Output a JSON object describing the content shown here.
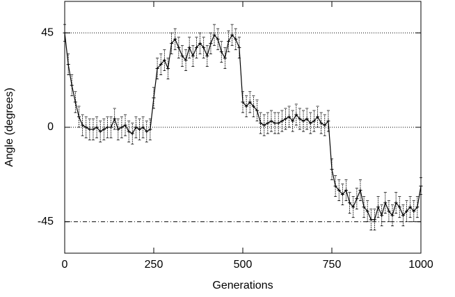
{
  "chart_data": {
    "type": "line-errorbar",
    "xlabel": "Generations",
    "ylabel": "Angle (degrees)",
    "xlim": [
      0,
      1000
    ],
    "ylim": [
      -60,
      60
    ],
    "xticks": [
      0,
      250,
      500,
      750,
      1000
    ],
    "yticks": [
      -45,
      0,
      45
    ],
    "hlines": [
      {
        "value": 45,
        "style": "dotted"
      },
      {
        "value": 0,
        "style": "dotted"
      },
      {
        "value": -45,
        "style": "dashdot"
      }
    ],
    "color": "#000000",
    "x": [
      0,
      10,
      20,
      30,
      40,
      50,
      60,
      70,
      80,
      90,
      100,
      110,
      120,
      130,
      140,
      150,
      160,
      170,
      180,
      190,
      200,
      210,
      220,
      230,
      240,
      250,
      260,
      270,
      280,
      290,
      300,
      310,
      320,
      330,
      340,
      350,
      360,
      370,
      380,
      390,
      400,
      410,
      420,
      430,
      440,
      450,
      460,
      470,
      480,
      490,
      500,
      510,
      520,
      530,
      540,
      550,
      560,
      570,
      580,
      590,
      600,
      610,
      620,
      630,
      640,
      650,
      660,
      670,
      680,
      690,
      700,
      710,
      720,
      730,
      740,
      750,
      760,
      770,
      780,
      790,
      800,
      810,
      820,
      830,
      840,
      850,
      860,
      870,
      880,
      890,
      900,
      910,
      920,
      930,
      940,
      950,
      960,
      970,
      980,
      990,
      1000
    ],
    "values": [
      45,
      30,
      20,
      12,
      5,
      1,
      0,
      -1,
      -1,
      0,
      -2,
      -1,
      0,
      0,
      4,
      -1,
      0,
      1,
      -2,
      -3,
      0,
      -1,
      0,
      -2,
      -1,
      14,
      28,
      30,
      32,
      28,
      40,
      42,
      38,
      34,
      32,
      38,
      34,
      38,
      40,
      38,
      34,
      40,
      44,
      42,
      36,
      33,
      41,
      44,
      42,
      38,
      12,
      10,
      12,
      10,
      8,
      2,
      1,
      2,
      3,
      2,
      2,
      3,
      4,
      5,
      3,
      6,
      4,
      3,
      4,
      2,
      3,
      5,
      2,
      1,
      3,
      -20,
      -28,
      -30,
      -32,
      -30,
      -36,
      -38,
      -34,
      -30,
      -38,
      -40,
      -44,
      -44,
      -38,
      -42,
      -36,
      -40,
      -42,
      -36,
      -38,
      -42,
      -40,
      -38,
      -40,
      -38,
      -28
    ],
    "errors": [
      4,
      5,
      5,
      5,
      5,
      5,
      5,
      5,
      5,
      5,
      5,
      5,
      5,
      5,
      5,
      5,
      5,
      5,
      5,
      5,
      5,
      5,
      5,
      5,
      5,
      5,
      5,
      5,
      5,
      5,
      5,
      5,
      5,
      5,
      5,
      5,
      5,
      5,
      5,
      5,
      5,
      5,
      5,
      5,
      5,
      5,
      5,
      5,
      5,
      5,
      5,
      5,
      5,
      5,
      5,
      5,
      5,
      5,
      5,
      5,
      5,
      5,
      5,
      5,
      5,
      5,
      5,
      5,
      5,
      5,
      5,
      5,
      5,
      5,
      5,
      5,
      5,
      5,
      5,
      5,
      5,
      5,
      5,
      5,
      5,
      5,
      5,
      5,
      5,
      5,
      5,
      5,
      5,
      5,
      5,
      5,
      5,
      5,
      5,
      5,
      4
    ]
  }
}
